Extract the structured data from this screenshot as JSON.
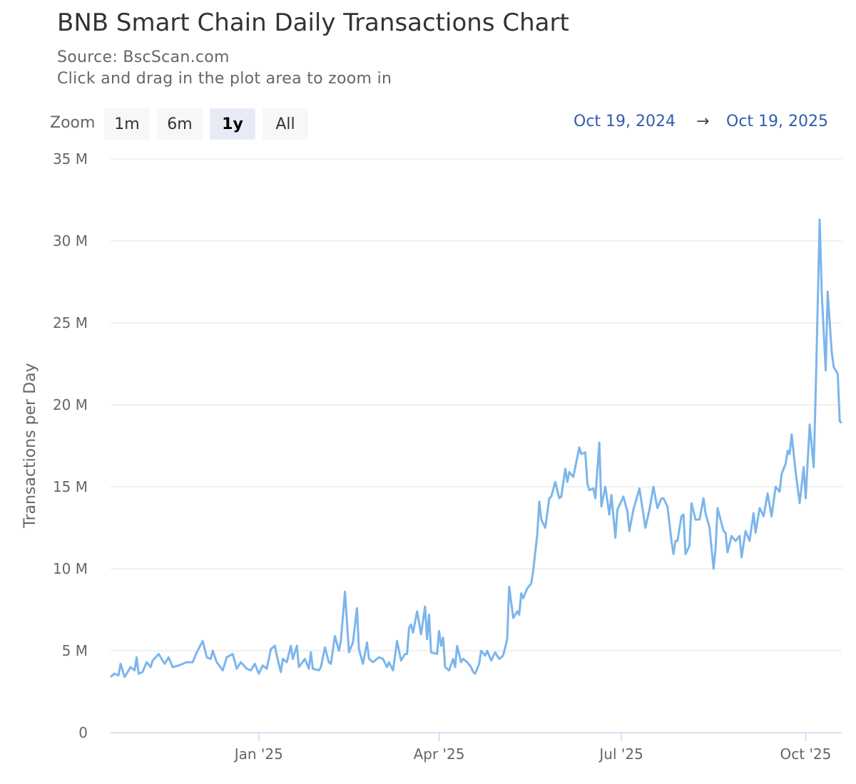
{
  "header": {
    "title": "BNB Smart Chain Daily Transactions Chart",
    "source": "Source: BscScan.com",
    "hint": "Click and drag in the plot area to zoom in"
  },
  "zoom": {
    "label": "Zoom",
    "buttons": [
      "1m",
      "6m",
      "1y",
      "All"
    ],
    "selected": "1y"
  },
  "range": {
    "from": "Oct 19, 2024",
    "arrow": "→",
    "to": "Oct 19, 2025"
  },
  "chart_data": {
    "type": "line",
    "title": "BNB Smart Chain Daily Transactions Chart",
    "subtitle": "Source: BscScan.com",
    "ylabel": "Transactions per Day",
    "xlabel": "",
    "ylim": [
      0,
      35000000
    ],
    "xlim": [
      "2024-10-19",
      "2025-10-19"
    ],
    "y_ticks": [
      0,
      5000000,
      10000000,
      15000000,
      20000000,
      25000000,
      30000000,
      35000000
    ],
    "y_tick_labels": [
      "0",
      "5 M",
      "10 M",
      "15 M",
      "20 M",
      "25 M",
      "30 M",
      "35 M"
    ],
    "x_ticks": [
      "2025-01-01",
      "2025-04-01",
      "2025-07-01",
      "2025-10-01"
    ],
    "x_tick_labels": [
      "Jan '25",
      "Apr '25",
      "Jul '25",
      "Oct '25"
    ],
    "grid": true,
    "legend": "none",
    "color": "#7cb5ec",
    "series": [
      {
        "dates": [
          "2024-10-19",
          "2024-10-21",
          "2024-10-23",
          "2024-10-24",
          "2024-10-26",
          "2024-10-29",
          "2024-10-31",
          "2024-11-01",
          "2024-11-02",
          "2024-11-04",
          "2024-11-06",
          "2024-11-08",
          "2024-11-09",
          "2024-11-12",
          "2024-11-15",
          "2024-11-17",
          "2024-11-19",
          "2024-11-22",
          "2024-11-26",
          "2024-11-29",
          "2024-12-01",
          "2024-12-04",
          "2024-12-06",
          "2024-12-08",
          "2024-12-09",
          "2024-12-11",
          "2024-12-14",
          "2024-12-16",
          "2024-12-19",
          "2024-12-21",
          "2024-12-23",
          "2024-12-26",
          "2024-12-28",
          "2024-12-30",
          "2025-01-01",
          "2025-01-03",
          "2025-01-05",
          "2025-01-07",
          "2025-01-09",
          "2025-01-10",
          "2025-01-12",
          "2025-01-13",
          "2025-01-15",
          "2025-01-17",
          "2025-01-18",
          "2025-01-20",
          "2025-01-21",
          "2025-01-24",
          "2025-01-26",
          "2025-01-27",
          "2025-01-28",
          "2025-01-31",
          "2025-02-01",
          "2025-02-03",
          "2025-02-05",
          "2025-02-06",
          "2025-02-08",
          "2025-02-10",
          "2025-02-11",
          "2025-02-13",
          "2025-02-15",
          "2025-02-17",
          "2025-02-19",
          "2025-02-20",
          "2025-02-22",
          "2025-02-24",
          "2025-02-25",
          "2025-02-27",
          "2025-03-02",
          "2025-03-04",
          "2025-03-06",
          "2025-03-07",
          "2025-03-09",
          "2025-03-11",
          "2025-03-13",
          "2025-03-15",
          "2025-03-16",
          "2025-03-17",
          "2025-03-18",
          "2025-03-19",
          "2025-03-21",
          "2025-03-23",
          "2025-03-25",
          "2025-03-26",
          "2025-03-27",
          "2025-03-28",
          "2025-03-31",
          "2025-04-01",
          "2025-04-02",
          "2025-04-03",
          "2025-04-04",
          "2025-04-06",
          "2025-04-08",
          "2025-04-09",
          "2025-04-10",
          "2025-04-12",
          "2025-04-13",
          "2025-04-15",
          "2025-04-17",
          "2025-04-18",
          "2025-04-19",
          "2025-04-21",
          "2025-04-22",
          "2025-04-24",
          "2025-04-25",
          "2025-04-27",
          "2025-04-29",
          "2025-05-01",
          "2025-05-03",
          "2025-05-05",
          "2025-05-06",
          "2025-05-08",
          "2025-05-10",
          "2025-05-11",
          "2025-05-12",
          "2025-05-13",
          "2025-05-15",
          "2025-05-17",
          "2025-05-18",
          "2025-05-20",
          "2025-05-21",
          "2025-05-22",
          "2025-05-24",
          "2025-05-26",
          "2025-05-27",
          "2025-05-29",
          "2025-05-31",
          "2025-06-01",
          "2025-06-03",
          "2025-06-04",
          "2025-06-05",
          "2025-06-07",
          "2025-06-10",
          "2025-06-11",
          "2025-06-13",
          "2025-06-14",
          "2025-06-15",
          "2025-06-17",
          "2025-06-18",
          "2025-06-20",
          "2025-06-21",
          "2025-06-23",
          "2025-06-25",
          "2025-06-26",
          "2025-06-28",
          "2025-06-29",
          "2025-07-02",
          "2025-07-04",
          "2025-07-05",
          "2025-07-07",
          "2025-07-10",
          "2025-07-13",
          "2025-07-15",
          "2025-07-17",
          "2025-07-19",
          "2025-07-21",
          "2025-07-22",
          "2025-07-24",
          "2025-07-26",
          "2025-07-27",
          "2025-07-28",
          "2025-07-29",
          "2025-07-31",
          "2025-08-01",
          "2025-08-02",
          "2025-08-04",
          "2025-08-05",
          "2025-08-07",
          "2025-08-09",
          "2025-08-11",
          "2025-08-12",
          "2025-08-14",
          "2025-08-16",
          "2025-08-17",
          "2025-08-18",
          "2025-08-21",
          "2025-08-22",
          "2025-08-23",
          "2025-08-25",
          "2025-08-27",
          "2025-08-29",
          "2025-08-30",
          "2025-09-01",
          "2025-09-03",
          "2025-09-05",
          "2025-09-06",
          "2025-09-08",
          "2025-09-10",
          "2025-09-12",
          "2025-09-14",
          "2025-09-16",
          "2025-09-18",
          "2025-09-19",
          "2025-09-21",
          "2025-09-22",
          "2025-09-23",
          "2025-09-24",
          "2025-09-26",
          "2025-09-28",
          "2025-09-30",
          "2025-10-01",
          "2025-10-03",
          "2025-10-05",
          "2025-10-06",
          "2025-10-08",
          "2025-10-09",
          "2025-10-11",
          "2025-10-12",
          "2025-10-14",
          "2025-10-15",
          "2025-10-17",
          "2025-10-18",
          "2025-10-19"
        ],
        "values_millions": [
          3.4,
          3.6,
          3.5,
          4.2,
          3.4,
          4.0,
          3.8,
          4.6,
          3.6,
          3.7,
          4.3,
          4.0,
          4.4,
          4.8,
          4.2,
          4.6,
          4.0,
          4.1,
          4.3,
          4.3,
          4.9,
          5.6,
          4.6,
          4.5,
          5.0,
          4.3,
          3.8,
          4.6,
          4.8,
          3.9,
          4.3,
          3.9,
          3.8,
          4.2,
          3.6,
          4.1,
          3.9,
          5.1,
          5.3,
          4.7,
          3.7,
          4.5,
          4.3,
          5.3,
          4.5,
          5.3,
          4.0,
          4.5,
          3.9,
          4.9,
          3.9,
          3.8,
          4.0,
          5.2,
          4.3,
          4.2,
          5.9,
          5.0,
          5.6,
          8.6,
          4.9,
          5.5,
          7.6,
          5.1,
          4.2,
          5.5,
          4.5,
          4.3,
          4.6,
          4.5,
          4.0,
          4.3,
          3.8,
          5.6,
          4.4,
          4.8,
          4.8,
          6.4,
          6.6,
          6.1,
          7.4,
          6.0,
          7.7,
          5.7,
          7.2,
          4.9,
          4.8,
          6.2,
          5.3,
          5.8,
          4.0,
          3.8,
          4.5,
          4.0,
          5.3,
          4.3,
          4.5,
          4.3,
          4.0,
          3.7,
          3.6,
          4.2,
          5.0,
          4.7,
          5.0,
          4.4,
          4.9,
          4.5,
          4.7,
          5.7,
          8.9,
          7.0,
          7.4,
          7.2,
          8.5,
          8.2,
          8.8,
          9.1,
          9.9,
          12.1,
          14.1,
          13.0,
          12.5,
          14.3,
          14.4,
          15.3,
          14.3,
          14.4,
          16.1,
          15.3,
          15.9,
          15.6,
          17.4,
          17.0,
          17.1,
          15.2,
          14.8,
          14.9,
          14.3,
          17.7,
          13.8,
          15.0,
          13.3,
          14.5,
          11.9,
          13.6,
          14.4,
          13.5,
          12.3,
          13.6,
          14.9,
          12.5,
          13.6,
          15.0,
          13.7,
          14.3,
          14.3,
          13.8,
          11.7,
          10.9,
          11.7,
          11.7,
          13.2,
          13.3,
          10.9,
          11.4,
          14.0,
          13.0,
          13.0,
          14.3,
          13.4,
          12.5,
          10.0,
          11.2,
          13.7,
          12.3,
          12.2,
          11.0,
          12.0,
          11.7,
          12.0,
          10.7,
          12.3,
          11.7,
          13.4,
          12.2,
          13.7,
          13.2,
          14.6,
          13.2,
          15.0,
          14.7,
          15.8,
          16.4,
          17.2,
          17.0,
          18.2,
          15.9,
          14.0,
          16.2,
          14.3,
          18.8,
          16.2,
          20.8,
          31.3,
          26.9,
          22.1,
          26.9,
          23.2,
          22.3,
          21.9,
          19.0,
          18.9
        ]
      }
    ]
  }
}
